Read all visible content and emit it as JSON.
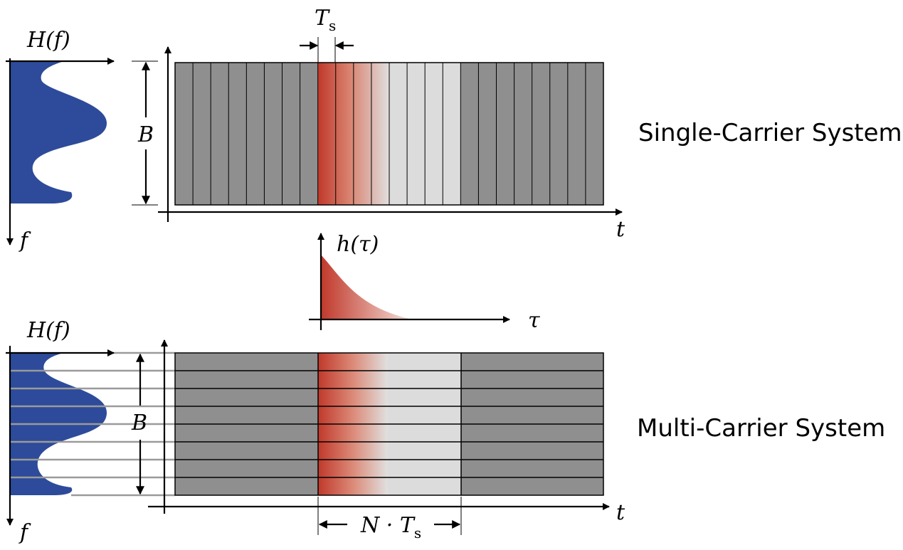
{
  "single": {
    "spectrum_label": "H(f)",
    "freq_axis_label": "f",
    "bandwidth_label": "B",
    "symbol_period_label": "T",
    "symbol_period_sub": "s",
    "time_axis_label": "t",
    "system_label": "Single-Carrier System"
  },
  "impulse": {
    "label": "h(τ)",
    "axis_label": "τ"
  },
  "multi": {
    "spectrum_label": "H(f)",
    "freq_axis_label": "f",
    "bandwidth_label": "B",
    "time_axis_label": "t",
    "duration_label": "N · T",
    "duration_sub": "s",
    "system_label": "Multi-Carrier System"
  },
  "colors": {
    "spectrum": "#2d4b9a",
    "symbol_gray": "#8f8f8f",
    "symbol_light": "#dcdcdc",
    "isi_red": "#c0392b"
  }
}
